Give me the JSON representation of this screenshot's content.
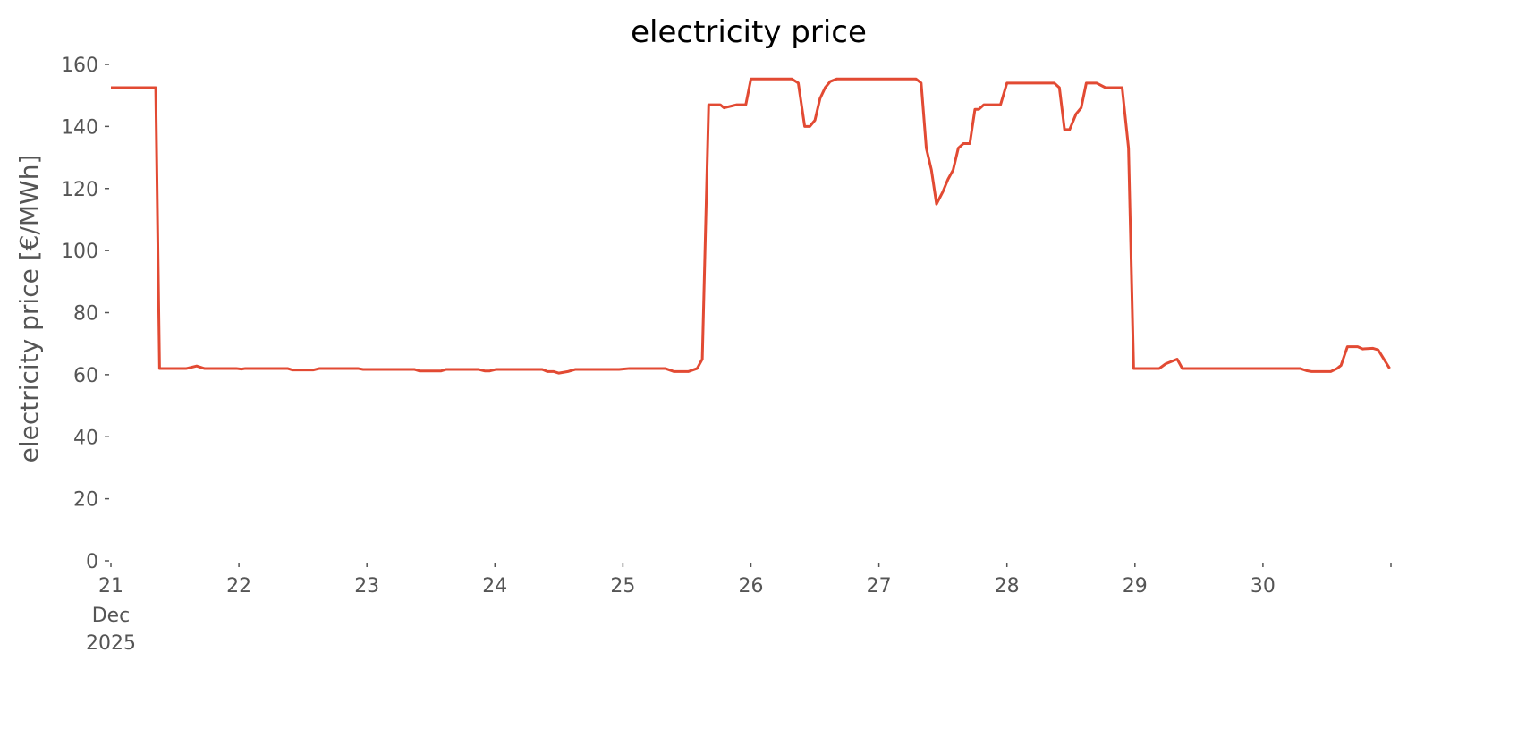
{
  "chart_data": {
    "type": "line",
    "title": "electricity price",
    "ylabel": "electricity price [€/MWh]",
    "color": "#e24a33",
    "x": [
      21.0,
      21.35,
      21.38,
      21.59,
      21.67,
      21.73,
      21.98,
      22.02,
      22.05,
      22.38,
      22.42,
      22.58,
      22.63,
      22.93,
      22.97,
      23.37,
      23.41,
      23.58,
      23.62,
      23.87,
      23.92,
      23.96,
      24.01,
      24.37,
      24.41,
      24.46,
      24.5,
      24.57,
      24.63,
      24.97,
      25.05,
      25.33,
      25.4,
      25.51,
      25.58,
      25.62,
      25.67,
      25.76,
      25.79,
      25.86,
      25.89,
      25.96,
      26.0,
      26.32,
      26.37,
      26.42,
      26.46,
      26.5,
      26.54,
      26.58,
      26.62,
      26.67,
      27.29,
      27.33,
      27.37,
      27.41,
      27.45,
      27.5,
      27.54,
      27.58,
      27.62,
      27.66,
      27.71,
      27.75,
      27.78,
      27.82,
      27.95,
      28.0,
      28.37,
      28.41,
      28.45,
      28.49,
      28.54,
      28.58,
      28.62,
      28.7,
      28.77,
      28.9,
      28.95,
      28.99,
      29.19,
      29.24,
      29.3,
      29.33,
      29.37,
      30.29,
      30.34,
      30.38,
      30.53,
      30.58,
      30.61,
      30.66,
      30.74,
      30.78,
      30.86,
      30.9,
      30.99
    ],
    "values": [
      152.5,
      152.5,
      62,
      62,
      62.8,
      62,
      62,
      61.8,
      62,
      62,
      61.5,
      61.5,
      62,
      62,
      61.7,
      61.7,
      61.2,
      61.2,
      61.7,
      61.7,
      61.2,
      61.2,
      61.7,
      61.7,
      61,
      61,
      60.5,
      61,
      61.7,
      61.7,
      62,
      62,
      61,
      61,
      62,
      65,
      147,
      147,
      146,
      146.7,
      147,
      147,
      155.3,
      155.3,
      154,
      140,
      140,
      142,
      149,
      152.5,
      154.5,
      155.3,
      155.3,
      154,
      133,
      126,
      115,
      119,
      123,
      126,
      133,
      134.5,
      134.5,
      145.5,
      145.5,
      147,
      147,
      154,
      154,
      152.5,
      139,
      139,
      144,
      146,
      154,
      154,
      152.5,
      152.5,
      133,
      62,
      62,
      63.5,
      64.5,
      65,
      62,
      62,
      61.3,
      61,
      61,
      62,
      63,
      69,
      69,
      68.3,
      68.5,
      68,
      62
    ],
    "xlim": [
      21,
      31
    ],
    "xticks": [
      21,
      22,
      23,
      24,
      25,
      26,
      27,
      28,
      29,
      30,
      {
        "value": 31,
        "label": null
      }
    ],
    "xtick_sublabels": [
      "Dec",
      "2025"
    ],
    "ylim": [
      0,
      160
    ],
    "yticks": [
      0,
      20,
      40,
      60,
      80,
      100,
      120,
      140,
      160
    ]
  }
}
